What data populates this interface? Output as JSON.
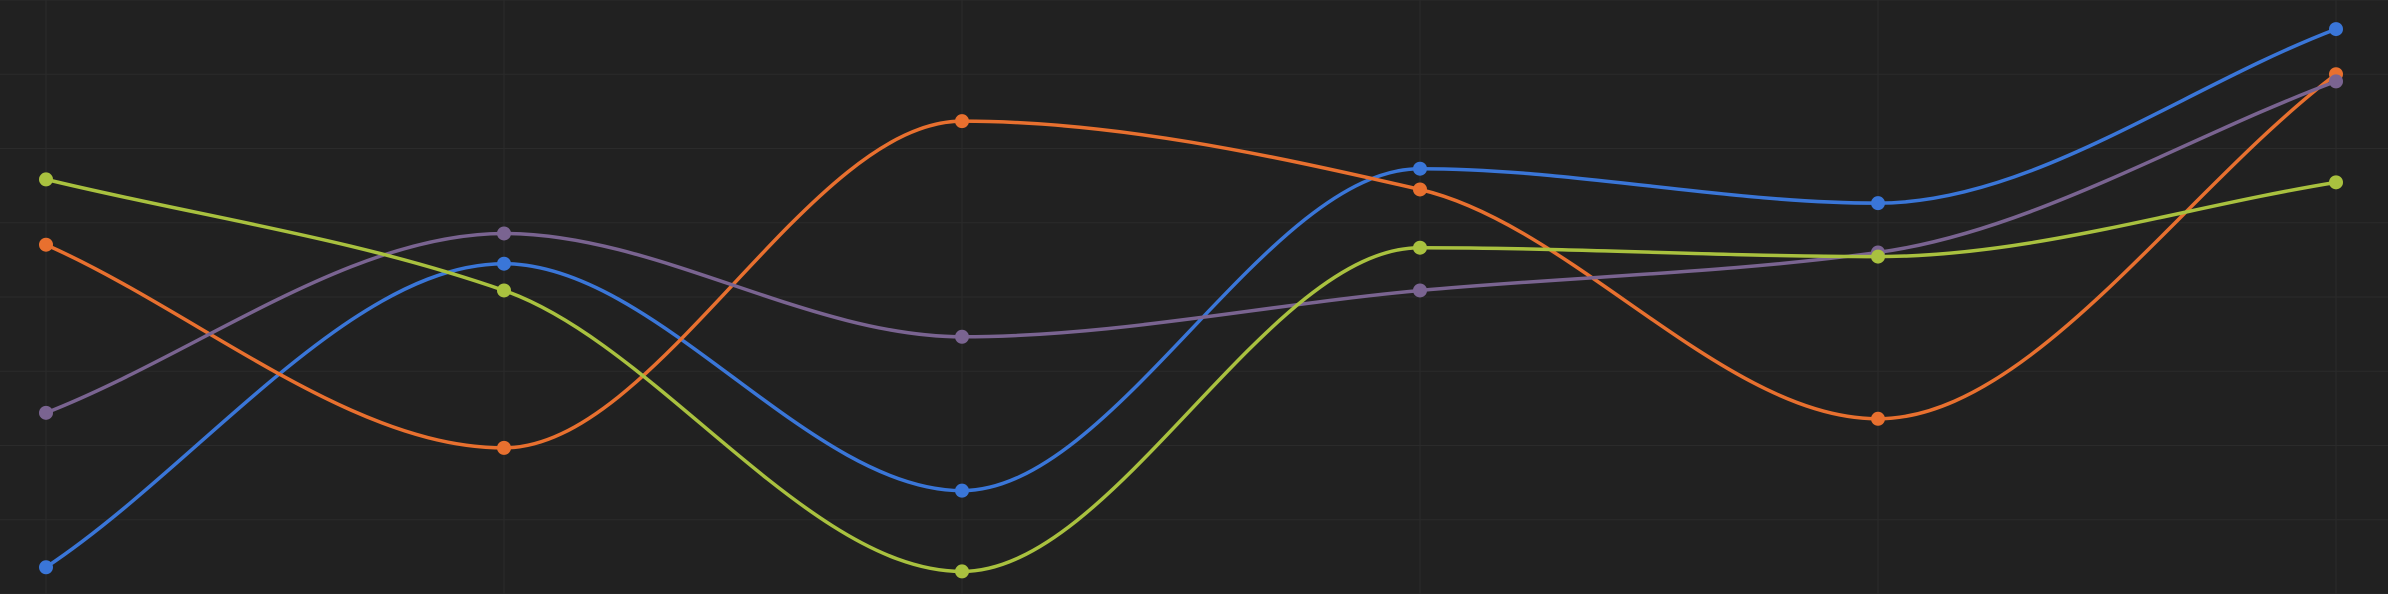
{
  "colors": {
    "background": "#212121",
    "grid": "#2b2b2b"
  },
  "chart_data": {
    "type": "line",
    "smooth": true,
    "grid": true,
    "legend": "none",
    "x": [
      0,
      1,
      2,
      3,
      4,
      5
    ],
    "ylim": [
      0,
      100
    ],
    "series": [
      {
        "color": "#3a76d8",
        "values": [
          4.5,
          55.6,
          17.4,
          71.6,
          65.8,
          95.1
        ]
      },
      {
        "color": "#e8702f",
        "values": [
          58.8,
          24.6,
          79.6,
          68.1,
          29.5,
          87.5
        ]
      },
      {
        "color": "#7a6491",
        "values": [
          30.5,
          60.7,
          43.3,
          51.1,
          57.5,
          86.3
        ]
      },
      {
        "color": "#a9c13f",
        "values": [
          69.8,
          51.1,
          3.8,
          58.3,
          56.8,
          69.3
        ]
      }
    ]
  }
}
